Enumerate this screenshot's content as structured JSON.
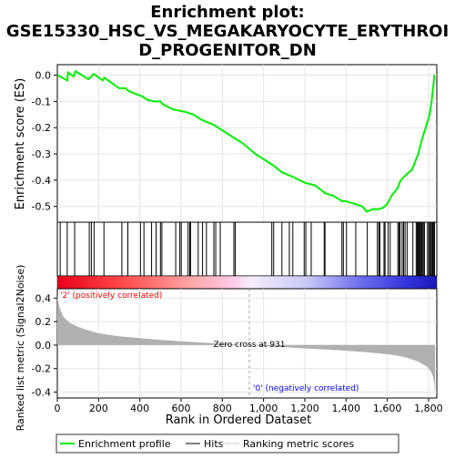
{
  "title_line1": "Enrichment plot:",
  "title_line2": "GSE15330_HSC_VS_MEGAKARYOCYTE_ERYTHROI",
  "title_line3": "D_PROGENITOR_DN",
  "colors": {
    "es_line": "#00ee00",
    "hits": "#000000",
    "metric_fill": "#b0b0b0",
    "legend_ranking": "#cccccc",
    "pos_label": "#ff0000",
    "neg_label": "#0000ff",
    "zero_dash": "#a0a0a0"
  },
  "chart_data": {
    "type": "line",
    "title": "Enrichment plot: GSE15330_HSC_VS_MEGAKARYOCYTE_ERYTHROID_PROGENITOR_DN",
    "xlabel": "Rank in Ordered Dataset",
    "xlim": [
      0,
      1840
    ],
    "x_ticks": [
      0,
      200,
      400,
      600,
      800,
      1000,
      1200,
      1400,
      1600,
      1800
    ],
    "x_tick_labels": [
      "0",
      "200",
      "400",
      "600",
      "800",
      "1,000",
      "1,200",
      "1,400",
      "1,600",
      "1,800"
    ],
    "es_panel": {
      "ylabel": "Enrichment score (ES)",
      "ylim": [
        -0.56,
        0.04
      ],
      "y_ticks": [
        0.0,
        -0.1,
        -0.2,
        -0.3,
        -0.4,
        -0.5
      ],
      "y_tick_labels": [
        "0.0",
        "-0.1",
        "-0.2",
        "-0.3",
        "-0.4",
        "-0.5"
      ],
      "grid": true,
      "series": [
        {
          "name": "Enrichment profile",
          "points": [
            [
              0,
              0.0
            ],
            [
              48,
              -0.02
            ],
            [
              52,
              0.01
            ],
            [
              80,
              -0.005
            ],
            [
              88,
              0.015
            ],
            [
              150,
              -0.015
            ],
            [
              165,
              -0.005
            ],
            [
              175,
              0.005
            ],
            [
              220,
              -0.02
            ],
            [
              228,
              -0.01
            ],
            [
              300,
              -0.05
            ],
            [
              330,
              -0.05
            ],
            [
              345,
              -0.06
            ],
            [
              390,
              -0.075
            ],
            [
              410,
              -0.08
            ],
            [
              440,
              -0.095
            ],
            [
              470,
              -0.1
            ],
            [
              500,
              -0.1
            ],
            [
              510,
              -0.11
            ],
            [
              560,
              -0.13
            ],
            [
              620,
              -0.14
            ],
            [
              640,
              -0.145
            ],
            [
              660,
              -0.15
            ],
            [
              700,
              -0.17
            ],
            [
              760,
              -0.19
            ],
            [
              820,
              -0.22
            ],
            [
              900,
              -0.26
            ],
            [
              960,
              -0.3
            ],
            [
              1040,
              -0.34
            ],
            [
              1090,
              -0.37
            ],
            [
              1150,
              -0.39
            ],
            [
              1200,
              -0.41
            ],
            [
              1250,
              -0.42
            ],
            [
              1300,
              -0.45
            ],
            [
              1340,
              -0.46
            ],
            [
              1380,
              -0.48
            ],
            [
              1400,
              -0.48
            ],
            [
              1440,
              -0.49
            ],
            [
              1480,
              -0.5
            ],
            [
              1500,
              -0.52
            ],
            [
              1530,
              -0.51
            ],
            [
              1560,
              -0.51
            ],
            [
              1580,
              -0.505
            ],
            [
              1600,
              -0.49
            ],
            [
              1620,
              -0.46
            ],
            [
              1650,
              -0.43
            ],
            [
              1665,
              -0.4
            ],
            [
              1690,
              -0.38
            ],
            [
              1720,
              -0.36
            ],
            [
              1750,
              -0.3
            ],
            [
              1770,
              -0.24
            ],
            [
              1790,
              -0.19
            ],
            [
              1805,
              -0.15
            ],
            [
              1815,
              -0.1
            ],
            [
              1822,
              -0.05
            ],
            [
              1828,
              0.0
            ],
            [
              1830,
              0.0
            ]
          ]
        }
      ]
    },
    "hits": [
      14,
      48,
      84,
      155,
      165,
      178,
      226,
      313,
      342,
      403,
      420,
      457,
      479,
      500,
      507,
      574,
      594,
      601,
      634,
      642,
      646,
      683,
      704,
      723,
      759,
      768,
      790,
      856,
      863,
      1040,
      1049,
      1089,
      1125,
      1142,
      1197,
      1205,
      1231,
      1294,
      1298,
      1380,
      1387,
      1402,
      1447,
      1503,
      1552,
      1559,
      1564,
      1584,
      1589,
      1604,
      1614,
      1651,
      1657,
      1662,
      1672,
      1679,
      1686,
      1696,
      1724,
      1740,
      1745,
      1749,
      1754,
      1759,
      1762,
      1766,
      1770,
      1775,
      1780,
      1795,
      1801,
      1806,
      1810,
      1815,
      1820,
      1824,
      1829
    ],
    "metric_panel": {
      "ylabel": "Ranked list metric (Signal2Noise)",
      "ylim": [
        -0.45,
        0.48
      ],
      "y_ticks": [
        0.4,
        0.2,
        0.0,
        -0.2,
        -0.4
      ],
      "y_tick_labels": [
        "0.4",
        "0.2",
        "0.0",
        "-0.2",
        "-0.4"
      ],
      "points": [
        [
          0,
          0.42
        ],
        [
          10,
          0.32
        ],
        [
          30,
          0.24
        ],
        [
          60,
          0.19
        ],
        [
          100,
          0.155
        ],
        [
          150,
          0.125
        ],
        [
          200,
          0.1
        ],
        [
          300,
          0.075
        ],
        [
          400,
          0.06
        ],
        [
          500,
          0.045
        ],
        [
          600,
          0.033
        ],
        [
          700,
          0.022
        ],
        [
          800,
          0.012
        ],
        [
          931,
          0.0
        ],
        [
          1000,
          -0.008
        ],
        [
          1100,
          -0.018
        ],
        [
          1200,
          -0.028
        ],
        [
          1300,
          -0.038
        ],
        [
          1400,
          -0.048
        ],
        [
          1500,
          -0.06
        ],
        [
          1600,
          -0.078
        ],
        [
          1650,
          -0.09
        ],
        [
          1700,
          -0.11
        ],
        [
          1750,
          -0.14
        ],
        [
          1790,
          -0.18
        ],
        [
          1810,
          -0.22
        ],
        [
          1822,
          -0.27
        ],
        [
          1828,
          -0.34
        ],
        [
          1831,
          -0.42
        ]
      ],
      "zero_cross_rank": 931,
      "zero_cross_label": "Zero cross at 931",
      "pos_label": "'2' (positively correlated)",
      "neg_label": "'0' (negatively correlated)"
    },
    "legend": [
      "Enrichment profile",
      "Hits",
      "Ranking metric scores"
    ]
  }
}
